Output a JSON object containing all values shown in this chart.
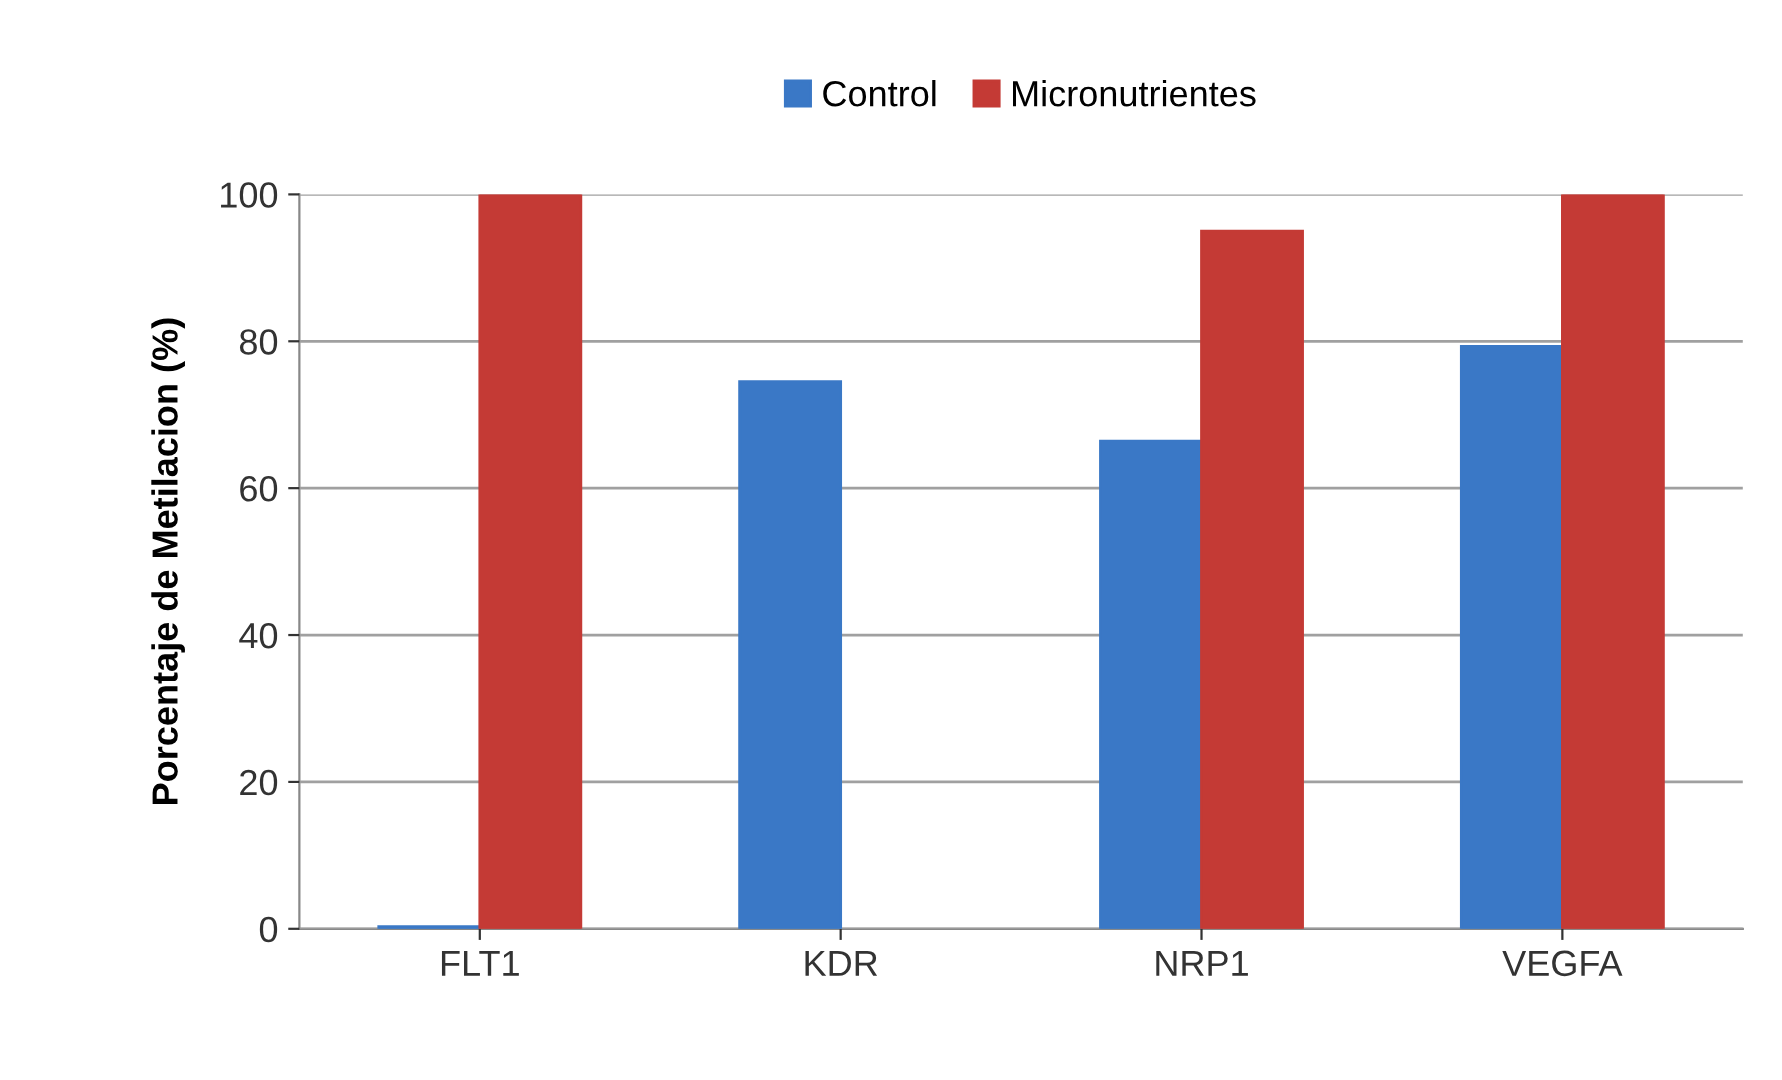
{
  "chart_data": {
    "type": "bar",
    "ylabel": "Porcentaje de Metilacion (%)",
    "categories": [
      "FLT1",
      "KDR",
      "NRP1",
      "VEGFA"
    ],
    "series": [
      {
        "name": "Control",
        "color": "#3a78c6",
        "values": [
          0.3,
          74.5,
          66.4,
          79.3
        ]
      },
      {
        "name": "Micronutrientes",
        "color": "#c43a35",
        "values": [
          100,
          0,
          95,
          100
        ]
      }
    ],
    "ylim": [
      0,
      100
    ],
    "yticks": [
      0,
      20,
      40,
      60,
      80,
      100
    ],
    "grid": "y",
    "legend": "top"
  }
}
